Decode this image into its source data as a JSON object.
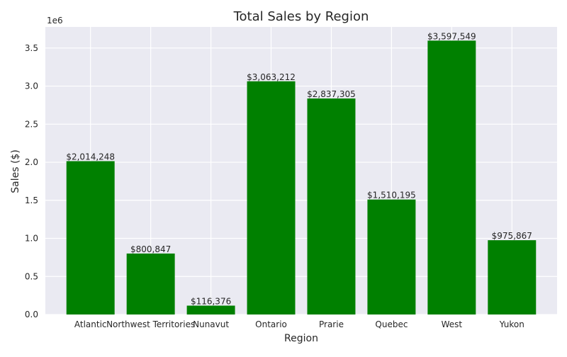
{
  "chart_data": {
    "type": "bar",
    "title": "Total Sales by Region",
    "xlabel": "Region",
    "ylabel": "Sales ($)",
    "y_offset_text": "1e6",
    "categories": [
      "Atlantic",
      "Northwest Territories",
      "Nunavut",
      "Ontario",
      "Prarie",
      "Quebec",
      "West",
      "Yukon"
    ],
    "values": [
      2014248,
      800847,
      116376,
      3063212,
      2837305,
      1510195,
      3597549,
      975867
    ],
    "data_labels": [
      "$2,014,248",
      "$800,847",
      "$116,376",
      "$3,063,212",
      "$2,837,305",
      "$1,510,195",
      "$3,597,549",
      "$975,867"
    ],
    "ylim": [
      0,
      3777426
    ],
    "yticks": [
      0,
      500000,
      1000000,
      1500000,
      2000000,
      2500000,
      3000000,
      3500000
    ],
    "ytick_labels": [
      "0.0",
      "0.5",
      "1.0",
      "1.5",
      "2.0",
      "2.5",
      "3.0",
      "3.5"
    ],
    "grid": true,
    "colors": {
      "bar": "#008000",
      "plot_background": "#eaeaf2",
      "grid": "#ffffff"
    }
  }
}
